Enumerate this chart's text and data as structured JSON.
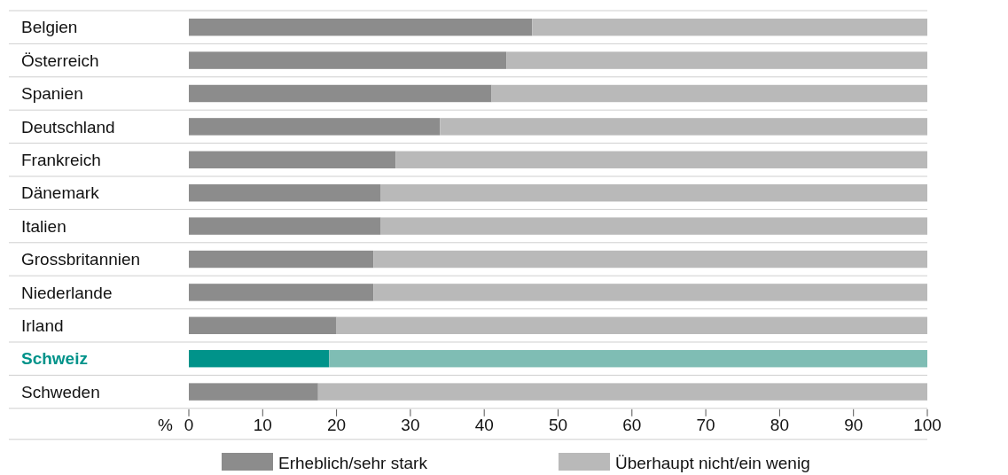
{
  "chart_data": {
    "type": "bar",
    "orientation": "horizontal",
    "stacked": true,
    "categories": [
      "Belgien",
      "Österreich",
      "Spanien",
      "Deutschland",
      "Frankreich",
      "Dänemark",
      "Italien",
      "Grossbritannien",
      "Niederlande",
      "Irland",
      "Schweiz",
      "Schweden"
    ],
    "series": [
      {
        "name": "Erheblich/sehr stark",
        "color": "#8c8c8c",
        "colors": [
          "#8c8c8c",
          "#8c8c8c",
          "#8c8c8c",
          "#8c8c8c",
          "#8c8c8c",
          "#8c8c8c",
          "#8c8c8c",
          "#8c8c8c",
          "#8c8c8c",
          "#8c8c8c",
          "#00938a",
          "#8c8c8c"
        ],
        "values": [
          46.5,
          43,
          41,
          34,
          28,
          26,
          26,
          25,
          25,
          20,
          19,
          17.5
        ]
      },
      {
        "name": "Überhaupt nicht/ein wenig",
        "color": "#b9b9b9",
        "colors": [
          "#b9b9b9",
          "#b9b9b9",
          "#b9b9b9",
          "#b9b9b9",
          "#b9b9b9",
          "#b9b9b9",
          "#b9b9b9",
          "#b9b9b9",
          "#b9b9b9",
          "#b9b9b9",
          "#7fbdb4",
          "#b9b9b9"
        ],
        "values": [
          53.5,
          57,
          59,
          66,
          72,
          74,
          74,
          75,
          75,
          80,
          81,
          82.5
        ]
      }
    ],
    "xlabel": "%",
    "xlim": [
      0,
      100
    ],
    "xticks": [
      0,
      10,
      20,
      30,
      40,
      50,
      60,
      70,
      80,
      90,
      100
    ],
    "legend": "bottom"
  }
}
